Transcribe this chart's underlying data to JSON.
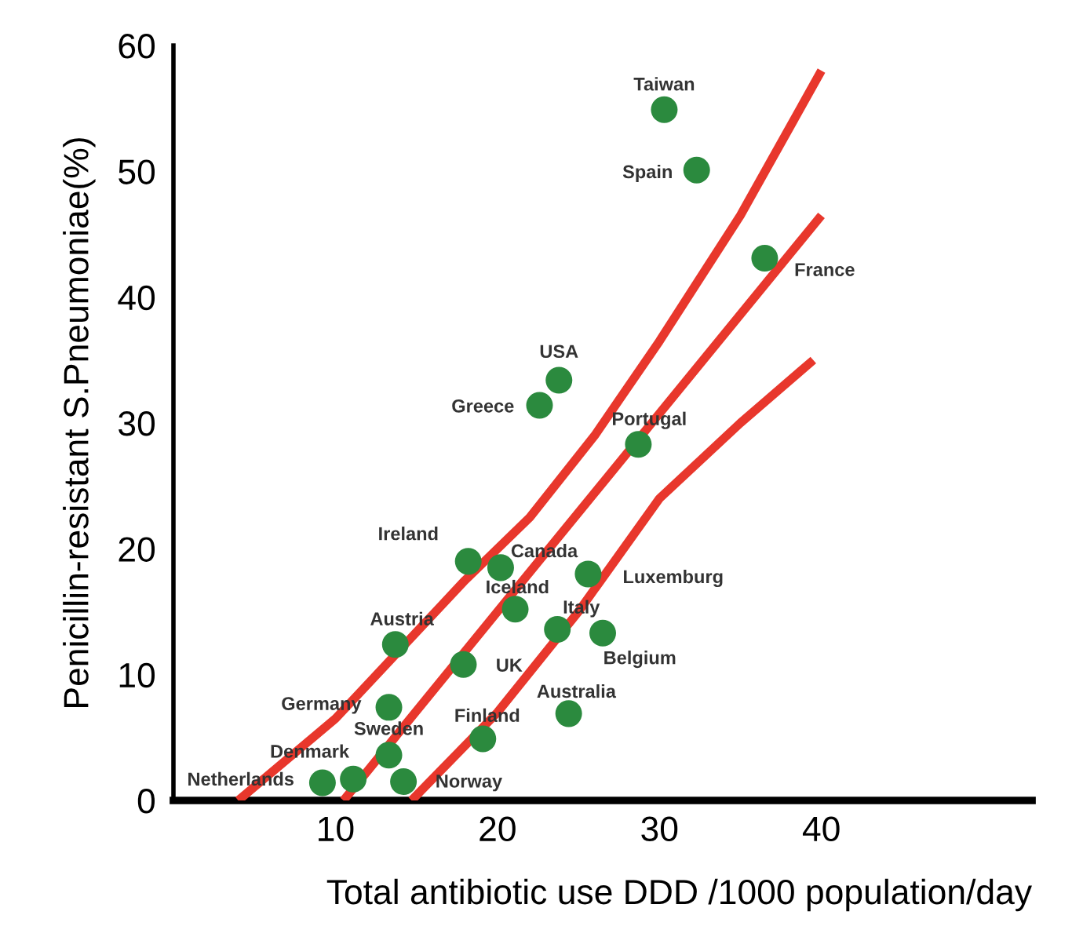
{
  "chart_data": {
    "type": "scatter",
    "xlabel": "Total antibiotic use DDD /1000 population/day",
    "ylabel": "Penicillin-resistant S.Pneumoniae(%)",
    "xlim": [
      0,
      53
    ],
    "ylim": [
      0,
      60
    ],
    "xticks": [
      10,
      20,
      30,
      40
    ],
    "yticks": [
      0,
      10,
      20,
      30,
      40,
      50,
      60
    ],
    "grid": false,
    "legend": false,
    "series": [
      {
        "color": "#2b8a3e",
        "marker": "circle",
        "x": [
          30.3,
          32.3,
          36.5,
          23.8,
          22.6,
          28.7,
          18.2,
          20.2,
          25.6,
          21.1,
          23.7,
          26.5,
          13.7,
          17.9,
          13.3,
          24.4,
          19.1,
          13.3,
          11.1,
          9.2,
          14.2
        ],
        "values": [
          54.9,
          50.1,
          43.1,
          33.4,
          31.4,
          28.3,
          19.0,
          18.5,
          18.0,
          15.2,
          13.6,
          13.3,
          12.4,
          10.8,
          7.4,
          6.9,
          4.9,
          3.6,
          1.7,
          1.4,
          1.5
        ]
      },
      {
        "type": "line",
        "color": "#e8372c",
        "marker": "none",
        "line_style": "solid",
        "x": [
          4,
          10,
          18,
          22,
          26,
          30,
          35,
          40
        ],
        "values": [
          0,
          6.5,
          17.5,
          22.5,
          29,
          36.5,
          46.5,
          58
        ]
      },
      {
        "type": "line",
        "color": "#e8372c",
        "marker": "none",
        "line_style": "solid",
        "x": [
          10.5,
          20,
          40
        ],
        "values": [
          0,
          15,
          46.5
        ]
      },
      {
        "type": "line",
        "color": "#e8372c",
        "marker": "none",
        "line_style": "solid",
        "x": [
          14.7,
          20,
          25,
          30,
          35,
          39.5
        ],
        "values": [
          0,
          7,
          15,
          24,
          30,
          35
        ]
      }
    ],
    "annotations": [
      {
        "text": "Taiwan",
        "x": 30.3,
        "y": 54.9
      },
      {
        "text": "Spain",
        "x": 32.3,
        "y": 50.1
      },
      {
        "text": "France",
        "x": 36.5,
        "y": 43.1
      },
      {
        "text": "USA",
        "x": 23.8,
        "y": 33.4
      },
      {
        "text": "Greece",
        "x": 22.6,
        "y": 31.4
      },
      {
        "text": "Portugal",
        "x": 28.7,
        "y": 28.3
      },
      {
        "text": "Ireland",
        "x": 18.2,
        "y": 19.0
      },
      {
        "text": "Canada",
        "x": 20.2,
        "y": 18.5
      },
      {
        "text": "Luxemburg",
        "x": 25.6,
        "y": 18.0
      },
      {
        "text": "Iceland",
        "x": 21.1,
        "y": 15.2
      },
      {
        "text": "Italy",
        "x": 23.7,
        "y": 13.6
      },
      {
        "text": "Belgium",
        "x": 26.5,
        "y": 13.3
      },
      {
        "text": "Austria",
        "x": 13.7,
        "y": 12.4
      },
      {
        "text": "UK",
        "x": 17.9,
        "y": 10.8
      },
      {
        "text": "Germany",
        "x": 13.3,
        "y": 7.4
      },
      {
        "text": "Australia",
        "x": 24.4,
        "y": 6.9
      },
      {
        "text": "Finland",
        "x": 19.1,
        "y": 4.9
      },
      {
        "text": "Sweden",
        "x": 13.3,
        "y": 3.6
      },
      {
        "text": "Denmark",
        "x": 11.1,
        "y": 1.7
      },
      {
        "text": "Netherlands",
        "x": 9.2,
        "y": 1.4
      },
      {
        "text": "Norway",
        "x": 14.2,
        "y": 1.5
      }
    ]
  }
}
